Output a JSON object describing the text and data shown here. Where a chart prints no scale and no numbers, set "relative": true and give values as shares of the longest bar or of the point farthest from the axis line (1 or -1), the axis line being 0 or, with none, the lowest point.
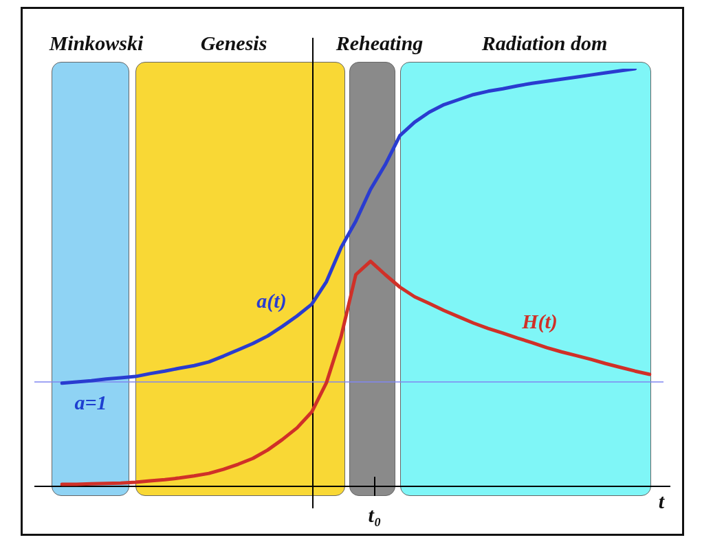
{
  "chart_data": {
    "type": "line",
    "relative": true,
    "xlabel": "t",
    "legend": false,
    "marker": "none",
    "categories": [
      null,
      null,
      null,
      null,
      null,
      null,
      null,
      null,
      null,
      null,
      null,
      null,
      null,
      null,
      null,
      null,
      null,
      null,
      null,
      null,
      null,
      null,
      null,
      null,
      null,
      null,
      null,
      null,
      null,
      null,
      null,
      null,
      null,
      null,
      null,
      null,
      null,
      null,
      null,
      null,
      null
    ],
    "series": [
      {
        "name": "a(t)",
        "color": "#2a3cd0",
        "values": [
          0.247,
          0.25,
          0.253,
          0.257,
          0.26,
          0.263,
          0.27,
          0.276,
          0.283,
          0.289,
          0.298,
          0.312,
          0.327,
          0.342,
          0.36,
          0.383,
          0.408,
          0.436,
          0.49,
          0.572,
          0.635,
          0.711,
          0.77,
          0.84,
          0.872,
          0.896,
          0.914,
          0.926,
          0.938,
          0.946,
          0.952,
          0.959,
          0.965,
          0.97,
          0.975,
          0.98,
          0.985,
          0.99,
          0.995,
          1.0,
          null
        ]
      },
      {
        "name": "H(t)",
        "color": "#d03028",
        "values": [
          0.005,
          0.005,
          0.006,
          0.007,
          0.008,
          0.01,
          0.013,
          0.016,
          0.02,
          0.025,
          0.031,
          0.041,
          0.053,
          0.067,
          0.087,
          0.112,
          0.14,
          0.178,
          0.248,
          0.359,
          0.507,
          0.539,
          0.507,
          0.477,
          0.454,
          0.438,
          0.421,
          0.406,
          0.391,
          0.378,
          0.367,
          0.355,
          0.344,
          0.332,
          0.322,
          0.313,
          0.304,
          0.294,
          0.285,
          0.276,
          0.268
        ]
      }
    ],
    "ref_lines": [
      {
        "axis": "y",
        "value": 0.25,
        "color": "#7f86f0"
      }
    ],
    "annotations": [
      "Minkowski",
      "Genesis",
      "Reheating",
      "Radiation dom",
      "a=1",
      "t₀"
    ]
  }
}
